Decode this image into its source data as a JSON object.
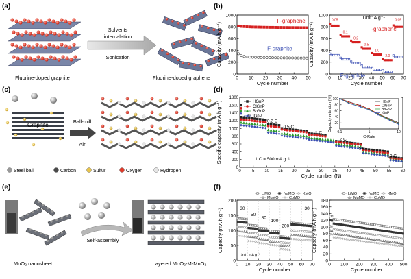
{
  "panels": {
    "a": {
      "letter": "(a)",
      "left_caption": "Fluorine-doped graphite",
      "right_caption": "Fluorine-doped graphene",
      "arrow_top": "Solvents",
      "arrow_top2": "intercalation",
      "arrow_bottom": "Sonication"
    },
    "b": {
      "letter": "(b)"
    },
    "c": {
      "letter": "(c)",
      "graphite_label": "Graphite",
      "arrow_top": "Ball-mill",
      "arrow_bottom": "Air",
      "legend": [
        {
          "label": "Steel ball",
          "color": "#9a9a9a"
        },
        {
          "label": "Carbon",
          "color": "#4a4a4a"
        },
        {
          "label": "Sulfur",
          "color": "#e8c44a"
        },
        {
          "label": "Oxygen",
          "color": "#e03a2a"
        },
        {
          "label": "Hydrogen",
          "color": "#e6e6e6"
        }
      ]
    },
    "d": {
      "letter": "(d)"
    },
    "e": {
      "letter": "(e)",
      "left_caption": "MnO₂ nanosheet",
      "mid_caption": "Self-assembly",
      "right_caption": "Layered MnO₂-M-MnO₂"
    },
    "f": {
      "letter": "(f)"
    }
  },
  "chart_data": [
    {
      "id": "b-left",
      "type": "scatter",
      "xlabel": "Cycle number",
      "ylabel": "Capacity (mA h g⁻¹)",
      "xlim": [
        0,
        50
      ],
      "ylim": [
        0,
        1000
      ],
      "xticks": [
        0,
        10,
        20,
        30,
        40,
        50
      ],
      "yticks": [
        0,
        200,
        400,
        600,
        800,
        1000
      ],
      "series": [
        {
          "name": "F-graphene",
          "color": "#d62020",
          "marker": "filled-square",
          "x": [
            1,
            3,
            5,
            7,
            9,
            11,
            13,
            15,
            17,
            19,
            21,
            23,
            25,
            27,
            29,
            31,
            33,
            35,
            37,
            39,
            41,
            43,
            45,
            47,
            49
          ],
          "y": [
            815,
            808,
            805,
            802,
            800,
            798,
            797,
            796,
            795,
            794,
            793,
            792,
            792,
            791,
            790,
            790,
            789,
            789,
            788,
            788,
            787,
            787,
            786,
            786,
            785
          ]
        },
        {
          "name": "F-graphite",
          "color": "#555555",
          "marker": "open-circle",
          "x": [
            1,
            3,
            5,
            7,
            9,
            11,
            13,
            15,
            17,
            19,
            21,
            23,
            25,
            27,
            29,
            31,
            33,
            35,
            37,
            39,
            41,
            43,
            45,
            47,
            49
          ],
          "y": [
            345,
            315,
            300,
            292,
            288,
            285,
            283,
            282,
            281,
            280,
            279,
            278,
            278,
            277,
            276,
            276,
            275,
            275,
            274,
            274,
            273,
            273,
            272,
            272,
            271
          ]
        }
      ]
    },
    {
      "id": "b-right",
      "type": "scatter",
      "title": "Unit: A g⁻¹",
      "xlabel": "Cycle number",
      "ylabel": "Capacity (mA h g⁻¹)",
      "xlim": [
        0,
        70
      ],
      "ylim": [
        0,
        1000
      ],
      "xticks": [
        0,
        10,
        20,
        30,
        40,
        50,
        60,
        70
      ],
      "yticks": [
        0,
        200,
        400,
        600,
        800,
        1000
      ],
      "rate_labels": [
        {
          "text": "0.05",
          "x": 5,
          "y": 900
        },
        {
          "text": "0.1",
          "x": 15,
          "y": 690
        },
        {
          "text": "0.2",
          "x": 25,
          "y": 590
        },
        {
          "text": "0.5",
          "x": 35,
          "y": 480
        },
        {
          "text": "1.0",
          "x": 45,
          "y": 380
        },
        {
          "text": "2.0",
          "x": 55,
          "y": 290
        },
        {
          "text": "0.05",
          "x": 65,
          "y": 900
        }
      ],
      "series": [
        {
          "name": "F-graphene",
          "color": "#d62020",
          "marker": "filled-square",
          "steps": [
            [
              0,
              10,
              820
            ],
            [
              10,
              20,
              640
            ],
            [
              20,
              30,
              540
            ],
            [
              30,
              40,
              430
            ],
            [
              40,
              50,
              330
            ],
            [
              50,
              60,
              235
            ],
            [
              60,
              70,
              800
            ]
          ]
        },
        {
          "name": "F-graphite",
          "color": "#3b4fb3",
          "marker": "open-square",
          "steps": [
            [
              0,
              10,
              320
            ],
            [
              10,
              20,
              250
            ],
            [
              20,
              30,
              185
            ],
            [
              30,
              40,
              120
            ],
            [
              40,
              50,
              75
            ],
            [
              50,
              60,
              40
            ],
            [
              60,
              70,
              290
            ]
          ]
        }
      ]
    },
    {
      "id": "d-main",
      "type": "scatter",
      "xlabel": "Cycle number (N)",
      "ylabel": "Specific capacity (mA h g⁻¹)",
      "xlim": [
        0,
        60
      ],
      "ylim": [
        0,
        1800
      ],
      "xticks": [
        0,
        5,
        10,
        15,
        20,
        25,
        30,
        35,
        40,
        45,
        50,
        55,
        60
      ],
      "yticks": [
        0,
        200,
        400,
        600,
        800,
        1000,
        1200,
        1400,
        1600,
        1800
      ],
      "annotation": "1 C = 500 mA g⁻¹",
      "rate_labels": [
        {
          "text": "0.1 C",
          "x": 5,
          "y": 1300
        },
        {
          "text": "0.2 C",
          "x": 12,
          "y": 1160
        },
        {
          "text": "0.5 C",
          "x": 18,
          "y": 1010
        },
        {
          "text": "1 C",
          "x": 29,
          "y": 860
        },
        {
          "text": "2 C",
          "x": 38,
          "y": 690
        },
        {
          "text": "5 C",
          "x": 45,
          "y": 450
        },
        {
          "text": "10 C",
          "x": 56,
          "y": 260
        }
      ],
      "series": [
        {
          "name": "HGnP",
          "color": "#222222",
          "marker": "filled-square",
          "steps": [
            [
              0,
              10,
              1220
            ],
            [
              10,
              15,
              1080
            ],
            [
              15,
              25,
              930
            ],
            [
              25,
              35,
              800
            ],
            [
              35,
              45,
              600
            ],
            [
              45,
              55,
              400
            ],
            [
              55,
              60,
              230
            ]
          ],
          "first": 1600
        },
        {
          "name": "ClGnP",
          "color": "#d62020",
          "marker": "filled-circle",
          "steps": [
            [
              0,
              10,
              1160
            ],
            [
              10,
              15,
              1030
            ],
            [
              15,
              25,
              900
            ],
            [
              25,
              35,
              770
            ],
            [
              35,
              45,
              580
            ],
            [
              45,
              55,
              360
            ],
            [
              55,
              60,
              200
            ]
          ],
          "first": 1520
        },
        {
          "name": "BrGnP",
          "color": "#2a9a2a",
          "marker": "filled-triangle",
          "steps": [
            [
              0,
              10,
              1080
            ],
            [
              10,
              15,
              930
            ],
            [
              15,
              25,
              800
            ],
            [
              25,
              35,
              690
            ],
            [
              35,
              45,
              530
            ],
            [
              45,
              55,
              320
            ],
            [
              55,
              60,
              170
            ]
          ],
          "first": 1450
        },
        {
          "name": "IGnP",
          "color": "#3b4fb3",
          "marker": "filled-diamond",
          "steps": [
            [
              0,
              10,
              1010
            ],
            [
              10,
              15,
              860
            ],
            [
              15,
              25,
              740
            ],
            [
              25,
              35,
              640
            ],
            [
              35,
              45,
              480
            ],
            [
              45,
              55,
              290
            ],
            [
              55,
              60,
              150
            ]
          ],
          "first": 1380
        }
      ]
    },
    {
      "id": "d-inset",
      "type": "line",
      "xlabel": "C-Rate",
      "ylabel": "Capacity retention (%)",
      "xscale": "log",
      "xlim": [
        0.1,
        10
      ],
      "ylim": [
        0,
        100
      ],
      "xticks": [
        0.1,
        1,
        10
      ],
      "xticklabels": [
        "0.1",
        "1",
        "10"
      ],
      "yticks": [
        20,
        40,
        60,
        80,
        100
      ],
      "x": [
        0.1,
        0.2,
        0.5,
        1,
        2,
        5,
        10
      ],
      "series": [
        {
          "name": "HGnP",
          "color": "#222222",
          "y": [
            100,
            90,
            78,
            66,
            50,
            33,
            20
          ]
        },
        {
          "name": "ClGnP",
          "color": "#d62020",
          "y": [
            100,
            89,
            77,
            66,
            50,
            31,
            17
          ]
        },
        {
          "name": "BrGnP",
          "color": "#2a9a2a",
          "y": [
            100,
            86,
            74,
            64,
            49,
            30,
            16
          ]
        },
        {
          "name": "IGnP",
          "color": "#3b4fb3",
          "y": [
            100,
            85,
            73,
            63,
            47,
            28,
            15
          ]
        }
      ]
    },
    {
      "id": "f-left",
      "type": "scatter",
      "xlabel": "Cycle number",
      "ylabel": "Capacity (mA h g⁻¹)",
      "xlim": [
        0,
        70
      ],
      "ylim": [
        0,
        200
      ],
      "xticks": [
        0,
        10,
        20,
        30,
        40,
        50,
        60,
        70
      ],
      "yticks": [
        0,
        50,
        100,
        150,
        200
      ],
      "annotation": "Unit: mA g⁻¹",
      "rate_labels": [
        {
          "text": "30",
          "x": 5,
          "y": 168
        },
        {
          "text": "50",
          "x": 15,
          "y": 148
        },
        {
          "text": "80",
          "x": 25,
          "y": 138
        },
        {
          "text": "100",
          "x": 35,
          "y": 127
        },
        {
          "text": "200",
          "x": 45,
          "y": 110
        },
        {
          "text": "30",
          "x": 65,
          "y": 168
        }
      ],
      "series": [
        {
          "name": "LiMO",
          "color": "#777777",
          "marker": "open-square",
          "steps": [
            [
              0,
              10,
              140
            ],
            [
              10,
              20,
              118
            ],
            [
              20,
              30,
              108
            ],
            [
              30,
              40,
              98
            ],
            [
              40,
              50,
              80
            ],
            [
              50,
              70,
              125
            ]
          ]
        },
        {
          "name": "NaMO",
          "color": "#333333",
          "marker": "filled-square",
          "steps": [
            [
              0,
              10,
              128
            ],
            [
              10,
              20,
              108
            ],
            [
              20,
              30,
              100
            ],
            [
              30,
              40,
              92
            ],
            [
              40,
              50,
              75
            ],
            [
              50,
              70,
              120
            ]
          ]
        },
        {
          "name": "KMO",
          "color": "#999999",
          "marker": "open-circle",
          "steps": [
            [
              0,
              10,
              112
            ],
            [
              10,
              20,
              92
            ],
            [
              20,
              30,
              85
            ],
            [
              30,
              40,
              78
            ],
            [
              40,
              50,
              60
            ],
            [
              50,
              70,
              100
            ]
          ]
        },
        {
          "name": "MgMO",
          "color": "#666666",
          "marker": "open-triangle",
          "steps": [
            [
              0,
              10,
              98
            ],
            [
              10,
              20,
              80
            ],
            [
              20,
              30,
              72
            ],
            [
              30,
              40,
              64
            ],
            [
              40,
              50,
              50
            ],
            [
              50,
              70,
              85
            ]
          ]
        },
        {
          "name": "CoMO",
          "color": "#aaaaaa",
          "marker": "open-diamond",
          "steps": [
            [
              0,
              10,
              82
            ],
            [
              10,
              20,
              65
            ],
            [
              20,
              30,
              58
            ],
            [
              30,
              40,
              52
            ],
            [
              40,
              50,
              38
            ],
            [
              50,
              70,
              72
            ]
          ]
        }
      ]
    },
    {
      "id": "f-right",
      "type": "scatter",
      "xlabel": "Cycle number",
      "ylabel": "Capacity (mA h g⁻¹)",
      "xlim": [
        0,
        500
      ],
      "ylim": [
        0,
        180
      ],
      "xticks": [
        0,
        100,
        200,
        300,
        400,
        500
      ],
      "yticks": [
        0,
        20,
        40,
        60,
        80,
        100,
        120,
        140,
        160,
        180
      ],
      "series": [
        {
          "name": "LiMO",
          "color": "#777777",
          "marker": "open-square",
          "start": 125,
          "end": 95
        },
        {
          "name": "NaMO",
          "color": "#333333",
          "marker": "filled-square",
          "start": 112,
          "end": 80
        },
        {
          "name": "KMO",
          "color": "#999999",
          "marker": "open-circle",
          "start": 95,
          "end": 65
        },
        {
          "name": "MgMO",
          "color": "#666666",
          "marker": "open-triangle",
          "start": 82,
          "end": 50
        },
        {
          "name": "CoMO",
          "color": "#aaaaaa",
          "marker": "open-diamond",
          "start": 70,
          "end": 42
        }
      ]
    }
  ]
}
